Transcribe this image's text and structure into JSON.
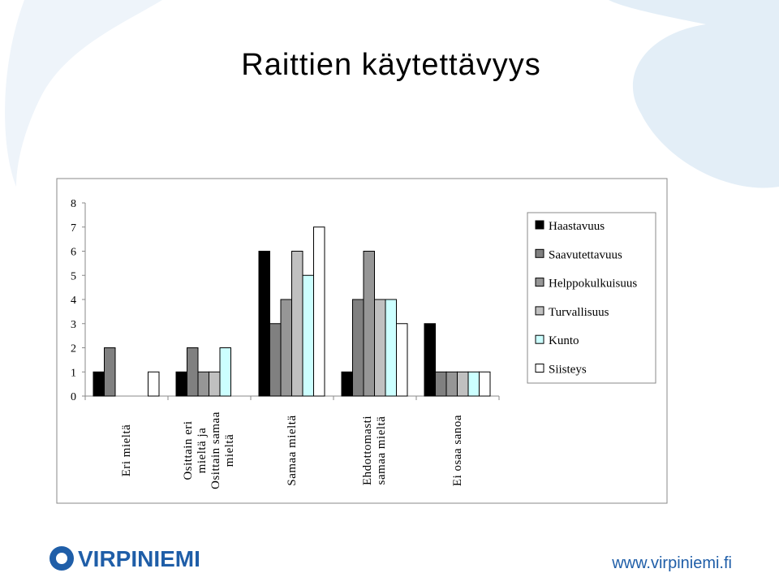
{
  "chart_data": {
    "type": "bar",
    "title": "Raittien käytettävyys",
    "categories": [
      "Eri mieltä",
      "Osittain eri mieltä ja Osittain samaa mieltä",
      "Samaa mieltä",
      "Ehdottomasti samaa mieltä",
      "Ei osaa sanoa"
    ],
    "series": [
      {
        "name": "Haastavuus",
        "color": "#000000",
        "values": [
          1,
          1,
          6,
          1,
          3
        ]
      },
      {
        "name": "Saavutettavuus",
        "color": "#808080",
        "values": [
          2,
          2,
          3,
          4,
          1
        ]
      },
      {
        "name": "Helppokulkuisuus",
        "color": "#969696",
        "values": [
          0,
          1,
          4,
          6,
          1
        ]
      },
      {
        "name": "Turvallisuus",
        "color": "#c0c0c0",
        "values": [
          0,
          1,
          6,
          4,
          1
        ]
      },
      {
        "name": "Kunto",
        "color": "#ccffff",
        "values": [
          0,
          2,
          5,
          4,
          1
        ]
      },
      {
        "name": "Siisteys",
        "color": "#ffffff",
        "values": [
          1,
          0,
          7,
          3,
          1
        ]
      }
    ],
    "ylim": [
      0,
      8
    ],
    "yticks": [
      0,
      1,
      2,
      3,
      4,
      5,
      6,
      7,
      8
    ],
    "grid": false,
    "legend": "right"
  },
  "footer": {
    "logo": "VIRPINIEMI",
    "url": "www.virpiniemi.fi"
  }
}
